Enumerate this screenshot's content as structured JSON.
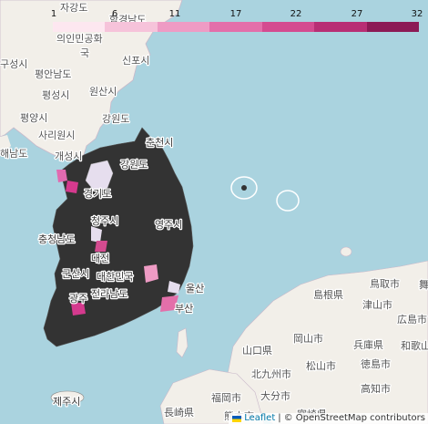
{
  "legend": {
    "ticks": [
      "1",
      "6",
      "11",
      "17",
      "22",
      "27",
      "32"
    ],
    "colors": [
      "#fde7f0",
      "#f6c3da",
      "#ee9bc4",
      "#e36faa",
      "#d44b90",
      "#b82e74",
      "#8c1a55"
    ]
  },
  "colors": {
    "water": "#aad3df",
    "land": "#f2efe9",
    "regions_dark": "#333333",
    "region_light": "#e9e2ef",
    "region_mid": "#e16bb0",
    "region_strong": "#d53a8e"
  },
  "labels": {
    "china": [
      {
        "name": "china-label-1",
        "text": "자강도"
      },
      {
        "name": "china-label-2",
        "text": "의인민공화"
      },
      {
        "name": "china-label-3",
        "text": "국"
      },
      {
        "name": "china-label-4",
        "text": "구성시"
      },
      {
        "name": "china-label-5",
        "text": "평안남도"
      },
      {
        "name": "china-label-6",
        "text": "평성시"
      },
      {
        "name": "china-label-7",
        "text": "원산시"
      },
      {
        "name": "china-label-8",
        "text": "평양시"
      },
      {
        "name": "china-label-9",
        "text": "강원도"
      },
      {
        "name": "china-label-10",
        "text": "사리원시"
      },
      {
        "name": "china-label-11",
        "text": "해남도"
      },
      {
        "name": "china-label-12",
        "text": "개성시"
      },
      {
        "name": "china-label-13",
        "text": "신포시"
      },
      {
        "name": "china-label-14",
        "text": "함경남도"
      }
    ],
    "korea": [
      {
        "name": "korea-label-1",
        "text": "춘천시"
      },
      {
        "name": "korea-label-2",
        "text": "강원도"
      },
      {
        "name": "korea-label-3",
        "text": "경기도"
      },
      {
        "name": "korea-label-4",
        "text": "청주시"
      },
      {
        "name": "korea-label-5",
        "text": "충청남도"
      },
      {
        "name": "korea-label-6",
        "text": "대전"
      },
      {
        "name": "korea-label-7",
        "text": "대한민국"
      },
      {
        "name": "korea-label-8",
        "text": "광주"
      },
      {
        "name": "korea-label-9",
        "text": "울산"
      },
      {
        "name": "korea-label-10",
        "text": "부산"
      },
      {
        "name": "korea-label-11",
        "text": "영주시"
      },
      {
        "name": "korea-label-12",
        "text": "군산시"
      },
      {
        "name": "korea-label-13",
        "text": "전라남도"
      },
      {
        "name": "korea-label-14",
        "text": "제주시"
      }
    ],
    "japan": [
      {
        "name": "japan-label-1",
        "text": "鳥取市"
      },
      {
        "name": "japan-label-2",
        "text": "島根県"
      },
      {
        "name": "japan-label-3",
        "text": "津山市"
      },
      {
        "name": "japan-label-4",
        "text": "広島市"
      },
      {
        "name": "japan-label-5",
        "text": "岡山市"
      },
      {
        "name": "japan-label-6",
        "text": "兵庫県"
      },
      {
        "name": "japan-label-7",
        "text": "和歌山"
      },
      {
        "name": "japan-label-8",
        "text": "山口県"
      },
      {
        "name": "japan-label-9",
        "text": "北九州市"
      },
      {
        "name": "japan-label-10",
        "text": "松山市"
      },
      {
        "name": "japan-label-11",
        "text": "徳島市"
      },
      {
        "name": "japan-label-12",
        "text": "福岡市"
      },
      {
        "name": "japan-label-13",
        "text": "大分市"
      },
      {
        "name": "japan-label-14",
        "text": "高知市"
      },
      {
        "name": "japan-label-15",
        "text": "長崎県"
      },
      {
        "name": "japan-label-16",
        "text": "熊本市"
      },
      {
        "name": "japan-label-17",
        "text": "宮崎県"
      },
      {
        "name": "japan-label-18",
        "text": "舞"
      }
    ]
  },
  "attribution": {
    "leaflet": "Leaflet",
    "separator": "|",
    "copyright": "© OpenStreetMap contributors"
  }
}
